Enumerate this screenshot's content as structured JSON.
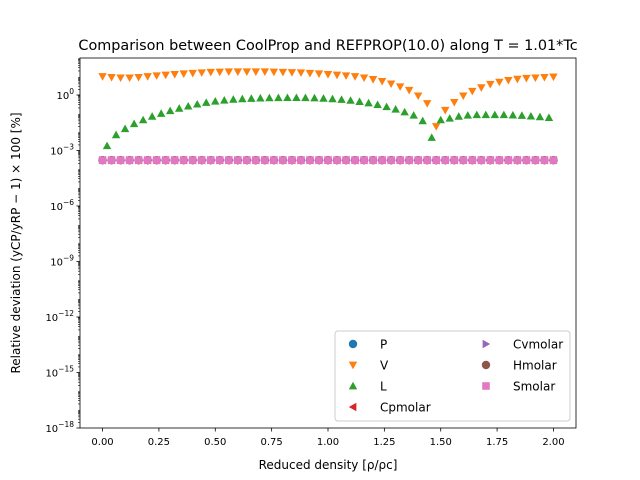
{
  "chart_data": {
    "type": "scatter",
    "title": "Comparison between CoolProp and REFPROP(10.0) along T = 1.01*Tc",
    "xlabel": "Reduced density [ρ/ρc]",
    "ylabel": "Relative deviation (yCP/yRP − 1) × 100 [%]",
    "xlim": [
      -0.1,
      2.1
    ],
    "ylim_log10": [
      -18,
      2
    ],
    "yscale": "log",
    "legend_position": "lower-right",
    "x_ticks": [
      {
        "value": 0.0,
        "label": "0.00"
      },
      {
        "value": 0.25,
        "label": "0.25"
      },
      {
        "value": 0.5,
        "label": "0.50"
      },
      {
        "value": 0.75,
        "label": "0.75"
      },
      {
        "value": 1.0,
        "label": "1.00"
      },
      {
        "value": 1.25,
        "label": "1.25"
      },
      {
        "value": 1.5,
        "label": "1.50"
      },
      {
        "value": 1.75,
        "label": "1.75"
      },
      {
        "value": 2.0,
        "label": "2.00"
      }
    ],
    "y_ticks": [
      {
        "exp": 0,
        "label": "10^0"
      },
      {
        "exp": -3,
        "label": "10^-3"
      },
      {
        "exp": -6,
        "label": "10^-6"
      },
      {
        "exp": -9,
        "label": "10^-9"
      },
      {
        "exp": -12,
        "label": "10^-12"
      },
      {
        "exp": -15,
        "label": "10^-15"
      },
      {
        "exp": -18,
        "label": "10^-18"
      }
    ],
    "series": [
      {
        "name": "P",
        "marker": "circle",
        "color": "#1f77b4",
        "x": [
          0.0,
          0.04,
          0.08,
          0.12,
          0.16,
          0.2,
          0.24,
          0.28,
          0.32,
          0.36,
          0.4,
          0.44,
          0.48,
          0.52,
          0.56,
          0.6,
          0.64,
          0.68,
          0.72,
          0.76,
          0.8,
          0.84,
          0.88,
          0.92,
          0.96,
          1.0,
          1.04,
          1.08,
          1.12,
          1.16,
          1.2,
          1.24,
          1.28,
          1.32,
          1.36,
          1.4,
          1.44,
          1.48,
          1.52,
          1.56,
          1.6,
          1.64,
          1.68,
          1.72,
          1.76,
          1.8,
          1.84,
          1.88,
          1.92,
          1.96,
          2.0
        ],
        "y": [
          0.0003,
          0.0003,
          0.0003,
          0.0003,
          0.0003,
          0.0003,
          0.0003,
          0.0003,
          0.0003,
          0.0003,
          0.0003,
          0.0003,
          0.0003,
          0.0003,
          0.0003,
          0.0003,
          0.0003,
          0.0003,
          0.0003,
          0.0003,
          0.0003,
          0.0003,
          0.0003,
          0.0003,
          0.0003,
          0.0003,
          0.0003,
          0.0003,
          0.0003,
          0.0003,
          0.0003,
          0.0003,
          0.0003,
          0.0003,
          0.0003,
          0.0003,
          0.0003,
          0.0003,
          0.0003,
          0.0003,
          0.0003,
          0.0003,
          0.0003,
          0.0003,
          0.0003,
          0.0003,
          0.0003,
          0.0003,
          0.0003,
          0.0003,
          0.0003
        ]
      },
      {
        "name": "V",
        "marker": "triangle-down",
        "color": "#ff7f0e",
        "x": [
          0.0,
          0.04,
          0.08,
          0.12,
          0.16,
          0.2,
          0.24,
          0.28,
          0.32,
          0.36,
          0.4,
          0.44,
          0.48,
          0.52,
          0.56,
          0.6,
          0.64,
          0.68,
          0.72,
          0.76,
          0.8,
          0.84,
          0.88,
          0.92,
          0.96,
          1.0,
          1.04,
          1.08,
          1.12,
          1.16,
          1.2,
          1.24,
          1.28,
          1.32,
          1.36,
          1.4,
          1.44,
          1.48,
          1.52,
          1.56,
          1.6,
          1.64,
          1.68,
          1.72,
          1.76,
          1.8,
          1.84,
          1.88,
          1.92,
          1.96,
          2.0
        ],
        "y": [
          10,
          9,
          8.5,
          8.5,
          9,
          10,
          11,
          12,
          13,
          14,
          15,
          16,
          17,
          17.5,
          18,
          18,
          18,
          18,
          18,
          17.5,
          17,
          16.5,
          16,
          15,
          14,
          13,
          12,
          11,
          10,
          8.5,
          7,
          5.5,
          4,
          2.8,
          1.8,
          0.9,
          0.35,
          0.02,
          0.15,
          0.4,
          0.9,
          1.6,
          2.5,
          3.8,
          5,
          6.2,
          7.2,
          8,
          8.5,
          9,
          9.5
        ]
      },
      {
        "name": "L",
        "marker": "triangle-up",
        "color": "#2ca02c",
        "x": [
          0.02,
          0.06,
          0.1,
          0.14,
          0.18,
          0.22,
          0.26,
          0.3,
          0.34,
          0.38,
          0.42,
          0.46,
          0.5,
          0.54,
          0.58,
          0.62,
          0.66,
          0.7,
          0.74,
          0.78,
          0.82,
          0.86,
          0.9,
          0.94,
          0.98,
          1.02,
          1.06,
          1.1,
          1.14,
          1.18,
          1.22,
          1.26,
          1.3,
          1.34,
          1.38,
          1.42,
          1.46,
          1.5,
          1.54,
          1.58,
          1.62,
          1.66,
          1.7,
          1.74,
          1.78,
          1.82,
          1.86,
          1.9,
          1.94,
          1.98
        ],
        "y": [
          0.0018,
          0.007,
          0.015,
          0.028,
          0.045,
          0.07,
          0.1,
          0.14,
          0.19,
          0.25,
          0.32,
          0.39,
          0.46,
          0.52,
          0.58,
          0.62,
          0.65,
          0.68,
          0.7,
          0.71,
          0.72,
          0.72,
          0.71,
          0.69,
          0.66,
          0.62,
          0.57,
          0.51,
          0.44,
          0.37,
          0.3,
          0.23,
          0.17,
          0.12,
          0.08,
          0.04,
          0.005,
          0.045,
          0.055,
          0.07,
          0.08,
          0.085,
          0.085,
          0.085,
          0.085,
          0.082,
          0.078,
          0.072,
          0.066,
          0.06
        ]
      },
      {
        "name": "Cpmolar",
        "marker": "triangle-left",
        "color": "#d62728",
        "x": [
          0.0,
          0.04,
          0.08,
          0.12,
          0.16,
          0.2,
          0.24,
          0.28,
          0.32,
          0.36,
          0.4,
          0.44,
          0.48,
          0.52,
          0.56,
          0.6,
          0.64,
          0.68,
          0.72,
          0.76,
          0.8,
          0.84,
          0.88,
          0.92,
          0.96,
          1.0,
          1.04,
          1.08,
          1.12,
          1.16,
          1.2,
          1.24,
          1.28,
          1.32,
          1.36,
          1.4,
          1.44,
          1.48,
          1.52,
          1.56,
          1.6,
          1.64,
          1.68,
          1.72,
          1.76,
          1.8,
          1.84,
          1.88,
          1.92,
          1.96,
          2.0
        ],
        "y": [
          0.0003,
          0.0003,
          0.0003,
          0.0003,
          0.0003,
          0.0003,
          0.0003,
          0.0003,
          0.0003,
          0.0003,
          0.0003,
          0.0003,
          0.0003,
          0.0003,
          0.0003,
          0.0003,
          0.0003,
          0.0003,
          0.0003,
          0.0003,
          0.0003,
          0.0003,
          0.0003,
          0.0003,
          0.0003,
          0.0003,
          0.0003,
          0.0003,
          0.0003,
          0.0003,
          0.0003,
          0.0003,
          0.0003,
          0.0003,
          0.0003,
          0.0003,
          0.0003,
          0.0003,
          0.0003,
          0.0003,
          0.0003,
          0.0003,
          0.0003,
          0.0003,
          0.0003,
          0.0003,
          0.0003,
          0.0003,
          0.0003,
          0.0003,
          0.0003
        ]
      },
      {
        "name": "Cvmolar",
        "marker": "triangle-right",
        "color": "#9467bd",
        "x": [
          0.0,
          0.04,
          0.08,
          0.12,
          0.16,
          0.2,
          0.24,
          0.28,
          0.32,
          0.36,
          0.4,
          0.44,
          0.48,
          0.52,
          0.56,
          0.6,
          0.64,
          0.68,
          0.72,
          0.76,
          0.8,
          0.84,
          0.88,
          0.92,
          0.96,
          1.0,
          1.04,
          1.08,
          1.12,
          1.16,
          1.2,
          1.24,
          1.28,
          1.32,
          1.36,
          1.4,
          1.44,
          1.48,
          1.52,
          1.56,
          1.6,
          1.64,
          1.68,
          1.72,
          1.76,
          1.8,
          1.84,
          1.88,
          1.92,
          1.96,
          2.0
        ],
        "y": [
          0.0003,
          0.0003,
          0.0003,
          0.0003,
          0.0003,
          0.0003,
          0.0003,
          0.0003,
          0.0003,
          0.0003,
          0.0003,
          0.0003,
          0.0003,
          0.0003,
          0.0003,
          0.0003,
          0.0003,
          0.0003,
          0.0003,
          0.0003,
          0.0003,
          0.0003,
          0.0003,
          0.0003,
          0.0003,
          0.0003,
          0.0003,
          0.0003,
          0.0003,
          0.0003,
          0.0003,
          0.0003,
          0.0003,
          0.0003,
          0.0003,
          0.0003,
          0.0003,
          0.0003,
          0.0003,
          0.0003,
          0.0003,
          0.0003,
          0.0003,
          0.0003,
          0.0003,
          0.0003,
          0.0003,
          0.0003,
          0.0003,
          0.0003,
          0.0003
        ]
      },
      {
        "name": "Hmolar",
        "marker": "circle",
        "color": "#8c564b",
        "x": [
          0.0,
          0.04,
          0.08,
          0.12,
          0.16,
          0.2,
          0.24,
          0.28,
          0.32,
          0.36,
          0.4,
          0.44,
          0.48,
          0.52,
          0.56,
          0.6,
          0.64,
          0.68,
          0.72,
          0.76,
          0.8,
          0.84,
          0.88,
          0.92,
          0.96,
          1.0,
          1.04,
          1.08,
          1.12,
          1.16,
          1.2,
          1.24,
          1.28,
          1.32,
          1.36,
          1.4,
          1.44,
          1.48,
          1.52,
          1.56,
          1.6,
          1.64,
          1.68,
          1.72,
          1.76,
          1.8,
          1.84,
          1.88,
          1.92,
          1.96,
          2.0
        ],
        "y": [
          0.0003,
          0.0003,
          0.0003,
          0.0003,
          0.0003,
          0.0003,
          0.0003,
          0.0003,
          0.0003,
          0.0003,
          0.0003,
          0.0003,
          0.0003,
          0.0003,
          0.0003,
          0.0003,
          0.0003,
          0.0003,
          0.0003,
          0.0003,
          0.0003,
          0.0003,
          0.0003,
          0.0003,
          0.0003,
          0.0003,
          0.0003,
          0.0003,
          0.0003,
          0.0003,
          0.0003,
          0.0003,
          0.0003,
          0.0003,
          0.0003,
          0.0003,
          0.0003,
          0.0003,
          0.0003,
          0.0003,
          0.0003,
          0.0003,
          0.0003,
          0.0003,
          0.0003,
          0.0003,
          0.0003,
          0.0003,
          0.0003,
          0.0003,
          0.0003
        ]
      },
      {
        "name": "Smolar",
        "marker": "square",
        "color": "#e377c2",
        "x": [
          0.0,
          0.04,
          0.08,
          0.12,
          0.16,
          0.2,
          0.24,
          0.28,
          0.32,
          0.36,
          0.4,
          0.44,
          0.48,
          0.52,
          0.56,
          0.6,
          0.64,
          0.68,
          0.72,
          0.76,
          0.8,
          0.84,
          0.88,
          0.92,
          0.96,
          1.0,
          1.04,
          1.08,
          1.12,
          1.16,
          1.2,
          1.24,
          1.28,
          1.32,
          1.36,
          1.4,
          1.44,
          1.48,
          1.52,
          1.56,
          1.6,
          1.64,
          1.68,
          1.72,
          1.76,
          1.8,
          1.84,
          1.88,
          1.92,
          1.96,
          2.0
        ],
        "y": [
          0.0003,
          0.0003,
          0.0003,
          0.0003,
          0.0003,
          0.0003,
          0.0003,
          0.0003,
          0.0003,
          0.0003,
          0.0003,
          0.0003,
          0.0003,
          0.0003,
          0.0003,
          0.0003,
          0.0003,
          0.0003,
          0.0003,
          0.0003,
          0.0003,
          0.0003,
          0.0003,
          0.0003,
          0.0003,
          0.0003,
          0.0003,
          0.0003,
          0.0003,
          0.0003,
          0.0003,
          0.0003,
          0.0003,
          0.0003,
          0.0003,
          0.0003,
          0.0003,
          0.0003,
          0.0003,
          0.0003,
          0.0003,
          0.0003,
          0.0003,
          0.0003,
          0.0003,
          0.0003,
          0.0003,
          0.0003,
          0.0003,
          0.0003,
          0.0003
        ]
      }
    ]
  }
}
